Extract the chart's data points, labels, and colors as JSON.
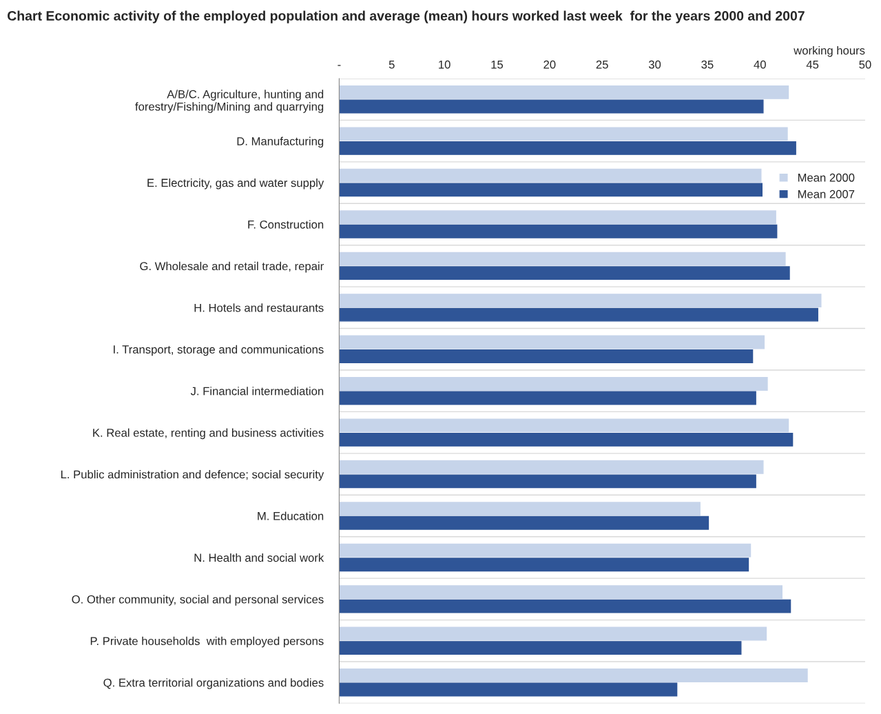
{
  "chart_data": {
    "type": "bar",
    "orientation": "horizontal",
    "title": "Chart Economic activity of the employed population and average (mean) hours worked last week  for the years 2000 and 2007",
    "xlabel": "working hours",
    "categories": [
      "A/B/C. Agriculture, hunting and\nforestry/Fishing/Mining and quarrying",
      "D. Manufacturing",
      "E. Electricity, gas and water supply",
      "F. Construction",
      "G. Wholesale and retail trade, repair",
      "H. Hotels and restaurants",
      "I. Transport, storage and communications",
      "J. Financial intermediation",
      "K. Real estate, renting and business activities",
      "L. Public administration and defence; social security",
      "M. Education",
      "N. Health and social work",
      "O. Other community, social and personal services",
      "P. Private households  with employed persons",
      "Q. Extra territorial organizations and bodies"
    ],
    "series": [
      {
        "name": "Mean 2000",
        "color": "#c6d4ea",
        "values": [
          42.7,
          42.6,
          40.1,
          41.5,
          42.4,
          45.8,
          40.4,
          40.7,
          42.7,
          40.3,
          34.3,
          39.1,
          42.1,
          40.6,
          44.5
        ]
      },
      {
        "name": "Mean 2007",
        "color": "#2f5597",
        "values": [
          40.3,
          43.4,
          40.2,
          41.6,
          42.8,
          45.5,
          39.3,
          39.6,
          43.1,
          39.6,
          35.1,
          38.9,
          42.9,
          38.2,
          32.1
        ]
      }
    ],
    "xlim": [
      0,
      50
    ],
    "xticks": [
      {
        "value": 0,
        "label": "-"
      },
      5,
      10,
      15,
      20,
      25,
      30,
      35,
      40,
      45,
      50
    ],
    "grid": "y",
    "legend": "top right"
  }
}
